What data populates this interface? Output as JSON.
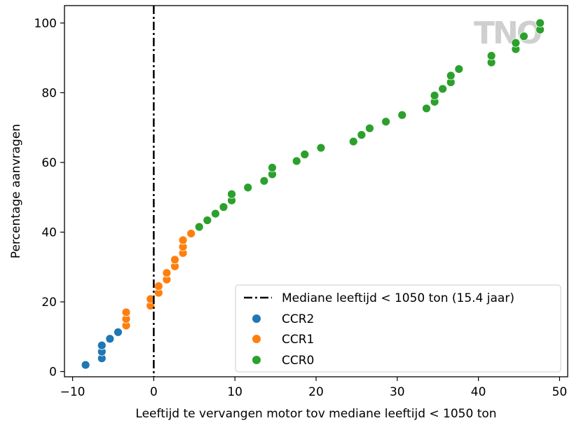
{
  "chart_data": {
    "type": "scatter",
    "xlabel": "Leeftijd te vervangen motor tov mediane leeftijd < 1050 ton",
    "ylabel": "Percentage aanvragen",
    "xlim": [
      -11,
      51
    ],
    "ylim": [
      -1.5,
      105
    ],
    "x_ticks": [
      -10,
      0,
      10,
      20,
      30,
      40,
      50
    ],
    "x_tick_labels": [
      "−10",
      "0",
      "10",
      "20",
      "30",
      "40",
      "50"
    ],
    "y_ticks": [
      0,
      20,
      40,
      60,
      80,
      100
    ],
    "y_tick_labels": [
      "0",
      "20",
      "40",
      "60",
      "80",
      "100"
    ],
    "grid": false,
    "legend_position": "lower-right",
    "vline": {
      "x": 0,
      "style": "dash-dot",
      "color": "#000000",
      "label": "Mediane leeftijd < 1050 ton (15.4 jaar)"
    },
    "watermark": "TNO",
    "series": [
      {
        "name": "CCR2",
        "color": "#1f77b4",
        "points": [
          [
            -8.4,
            1.9
          ],
          [
            -6.4,
            3.8
          ],
          [
            -6.4,
            5.7
          ],
          [
            -6.4,
            7.5
          ],
          [
            -5.4,
            9.4
          ],
          [
            -4.4,
            11.3
          ]
        ]
      },
      {
        "name": "CCR1",
        "color": "#ff7f0e",
        "points": [
          [
            -3.4,
            13.2
          ],
          [
            -3.4,
            15.1
          ],
          [
            -3.4,
            17.0
          ],
          [
            -0.4,
            18.9
          ],
          [
            -0.4,
            20.8
          ],
          [
            0.6,
            22.6
          ],
          [
            0.6,
            24.5
          ],
          [
            1.6,
            26.4
          ],
          [
            1.6,
            28.3
          ],
          [
            2.6,
            30.2
          ],
          [
            2.6,
            32.1
          ],
          [
            3.6,
            34.0
          ],
          [
            3.6,
            35.8
          ],
          [
            3.6,
            37.7
          ],
          [
            4.6,
            39.6
          ]
        ]
      },
      {
        "name": "CCR0",
        "color": "#2ca02c",
        "points": [
          [
            5.6,
            41.5
          ],
          [
            6.6,
            43.4
          ],
          [
            7.6,
            45.3
          ],
          [
            8.6,
            47.2
          ],
          [
            9.6,
            49.1
          ],
          [
            9.6,
            50.9
          ],
          [
            11.6,
            52.8
          ],
          [
            13.6,
            54.7
          ],
          [
            14.6,
            56.6
          ],
          [
            14.6,
            58.5
          ],
          [
            17.6,
            60.4
          ],
          [
            18.6,
            62.3
          ],
          [
            20.6,
            64.2
          ],
          [
            24.6,
            66.0
          ],
          [
            25.6,
            67.9
          ],
          [
            26.6,
            69.8
          ],
          [
            28.6,
            71.7
          ],
          [
            30.6,
            73.6
          ],
          [
            33.6,
            75.5
          ],
          [
            34.6,
            77.4
          ],
          [
            34.6,
            79.2
          ],
          [
            35.6,
            81.1
          ],
          [
            36.6,
            83.0
          ],
          [
            36.6,
            84.9
          ],
          [
            37.6,
            86.8
          ],
          [
            41.6,
            88.7
          ],
          [
            41.6,
            90.6
          ],
          [
            44.6,
            92.5
          ],
          [
            44.6,
            94.3
          ],
          [
            45.6,
            96.2
          ],
          [
            47.6,
            98.1
          ],
          [
            47.6,
            100.0
          ]
        ]
      }
    ]
  }
}
